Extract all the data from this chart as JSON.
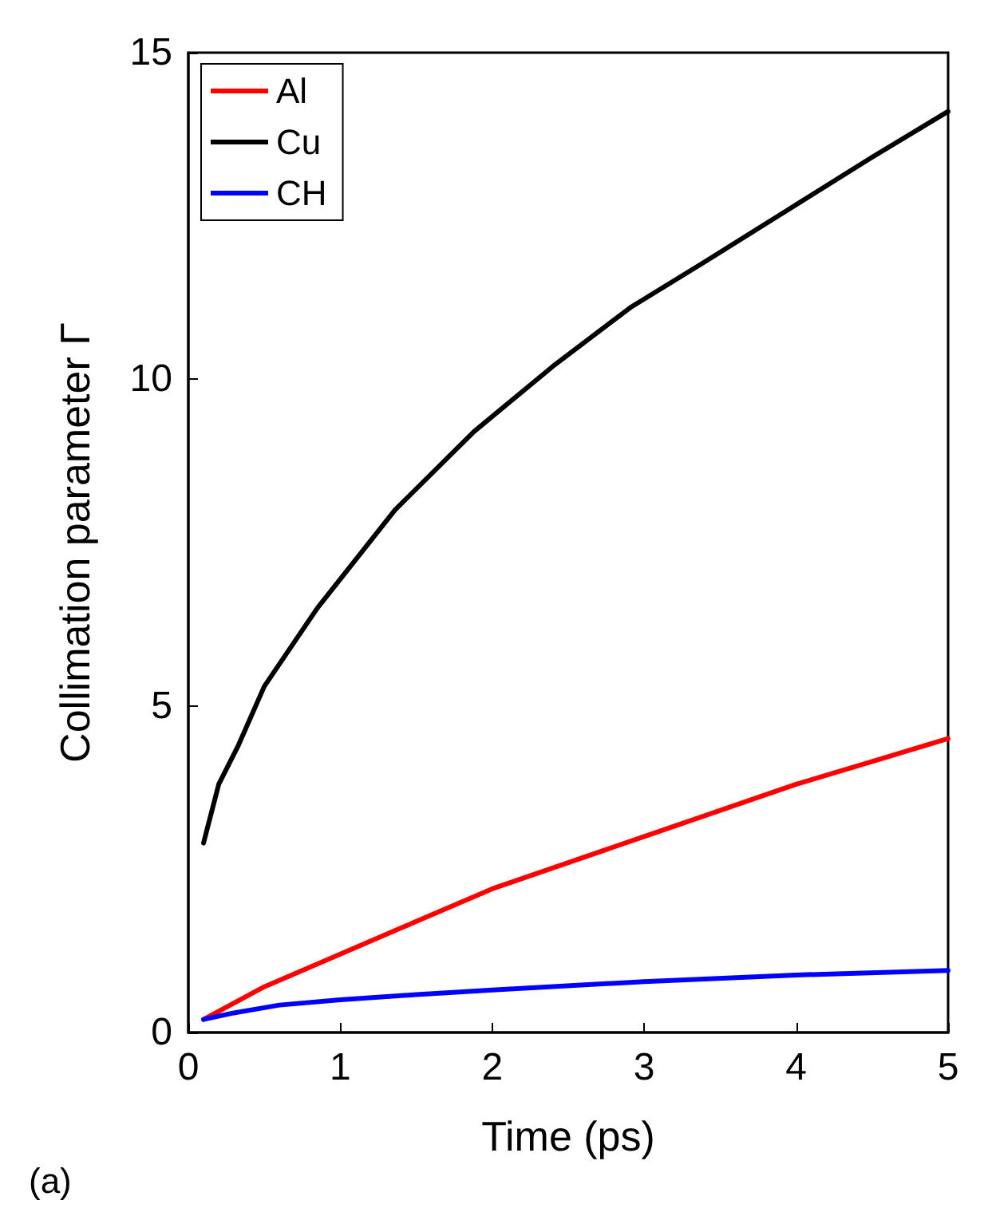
{
  "chart_data": {
    "type": "line",
    "xlabel": "Time (ps)",
    "ylabel": "Collimation parameter Γ",
    "annotations": [
      "(a)"
    ],
    "xlim": [
      0,
      5
    ],
    "xticks": [
      0,
      1,
      2,
      3,
      4,
      5
    ],
    "ylim": [
      0,
      15
    ],
    "yticks": [
      0,
      5,
      10,
      15
    ],
    "grid": false,
    "legend": "top left",
    "marker": "none",
    "line_style": "solid",
    "series": [
      {
        "name": "Al",
        "color": "#ff0000",
        "x": [
          0.1,
          0.3,
          0.5,
          1,
          1.5,
          2,
          2.5,
          3,
          3.5,
          4,
          4.5,
          5
        ],
        "values": [
          0.2,
          0.45,
          0.7,
          1.2,
          1.7,
          2.2,
          2.6,
          3.0,
          3.4,
          3.8,
          4.15,
          4.5
        ]
      },
      {
        "name": "Cu",
        "color": "#000000",
        "x": [
          0.1,
          0.2,
          0.33,
          0.5,
          0.85,
          1.36,
          1.88,
          2.4,
          2.91,
          3.4,
          3.95,
          4.5,
          5
        ],
        "values": [
          2.9,
          3.8,
          4.4,
          5.3,
          6.5,
          8.0,
          9.2,
          10.2,
          11.1,
          11.8,
          12.6,
          13.4,
          14.1
        ]
      },
      {
        "name": "CH",
        "color": "#0000ff",
        "x": [
          0.1,
          0.3,
          0.6,
          1,
          1.5,
          2,
          3,
          4,
          5
        ],
        "values": [
          0.2,
          0.3,
          0.42,
          0.5,
          0.58,
          0.65,
          0.78,
          0.88,
          0.95
        ]
      }
    ]
  }
}
